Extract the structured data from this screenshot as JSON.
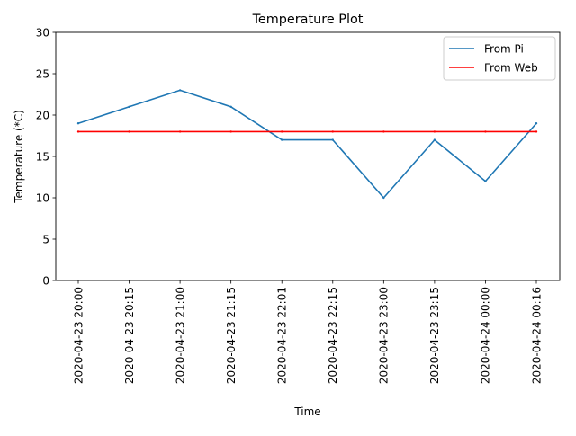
{
  "chart_data": {
    "type": "line",
    "title": "Temperature Plot",
    "xlabel": "Time",
    "ylabel": "Temperature (*C)",
    "categories": [
      "2020-04-23 20:00",
      "2020-04-23 20:15",
      "2020-04-23 21:00",
      "2020-04-23 21:15",
      "2020-04-23 22:01",
      "2020-04-23 22:15",
      "2020-04-23 23:00",
      "2020-04-23 23:15",
      "2020-04-24 00:00",
      "2020-04-24 00:16"
    ],
    "ylim": [
      0,
      30
    ],
    "yticks": [
      0,
      5,
      10,
      15,
      20,
      25,
      30
    ],
    "grid": false,
    "legend_position": "upper right",
    "series": [
      {
        "name": "From Pi",
        "color": "#1f77b4",
        "values": [
          19,
          21,
          23,
          21,
          17,
          17,
          10,
          17,
          12,
          19
        ]
      },
      {
        "name": "From Web",
        "color": "#ff0000",
        "values": [
          18,
          18,
          18,
          18,
          18,
          18,
          18,
          18,
          18,
          18
        ]
      }
    ]
  }
}
